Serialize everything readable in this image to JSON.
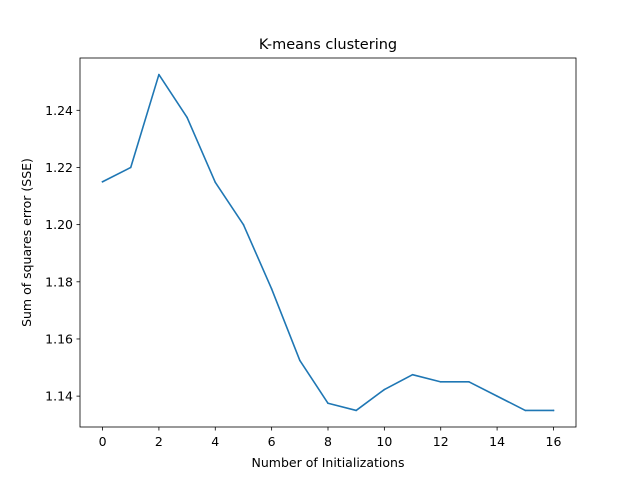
{
  "chart_data": {
    "type": "line",
    "title": "K-means clustering",
    "xlabel": "Number of Initializations",
    "ylabel": "Sum of squares error (SSE)",
    "xlim": [
      -0.8,
      16.8
    ],
    "ylim": [
      1.1292,
      1.2583
    ],
    "xticks": [
      0,
      2,
      4,
      6,
      8,
      10,
      12,
      14,
      16
    ],
    "yticks": [
      1.14,
      1.16,
      1.18,
      1.2,
      1.22,
      1.24
    ],
    "xtick_labels": [
      "0",
      "2",
      "4",
      "6",
      "8",
      "10",
      "12",
      "14",
      "16"
    ],
    "ytick_labels": [
      "1.14",
      "1.16",
      "1.18",
      "1.20",
      "1.22",
      "1.24"
    ],
    "grid": false,
    "series": [
      {
        "color": "#1f77b4",
        "x": [
          0,
          1,
          2,
          3,
          4,
          5,
          6,
          7,
          8,
          9,
          10,
          11,
          12,
          13,
          14,
          15,
          16
        ],
        "y": [
          1.215,
          1.22,
          1.2525,
          1.2375,
          1.2148,
          1.2,
          1.1775,
          1.1525,
          1.1375,
          1.135,
          1.1423,
          1.1475,
          1.145,
          1.145,
          1.14,
          1.135,
          1.135
        ]
      }
    ]
  }
}
